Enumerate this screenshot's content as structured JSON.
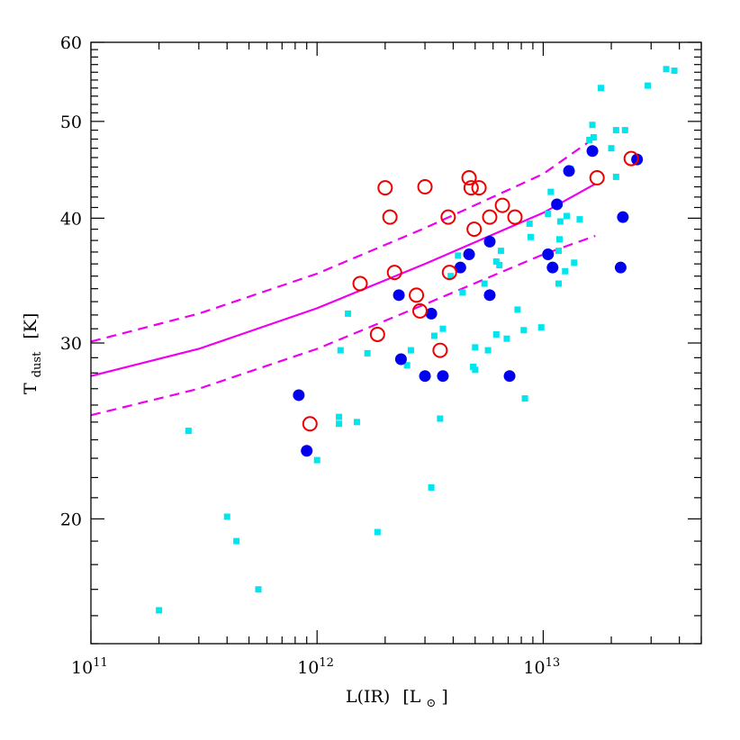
{
  "chart_data": {
    "type": "scatter",
    "xlabel": {
      "main": "L(IR)",
      "bracket_open": "[L",
      "sub": "⊙",
      "bracket_close": "]"
    },
    "ylabel": {
      "main": "T",
      "sub": "dust",
      "units": "[K]"
    },
    "x_scale": "log",
    "y_scale": "log",
    "xlim": [
      100000000000.0,
      50000000000000.0
    ],
    "ylim": [
      15,
      60
    ],
    "x_ticks": [
      {
        "value": 100000000000.0,
        "base": "10",
        "exp": "11"
      },
      {
        "value": 1000000000000.0,
        "base": "10",
        "exp": "12"
      },
      {
        "value": 10000000000000.0,
        "base": "10",
        "exp": "13"
      }
    ],
    "y_ticks": [
      {
        "value": 20,
        "label": "20"
      },
      {
        "value": 30,
        "label": "30"
      },
      {
        "value": 40,
        "label": "40"
      },
      {
        "value": 50,
        "label": "50"
      },
      {
        "value": 60,
        "label": "60"
      }
    ],
    "grid": false,
    "colors": {
      "cyan_squares": "#00e5ee",
      "blue_filled": "#0000ee",
      "red_open": "#ee0000",
      "fit": "#ee00ee"
    },
    "series": [
      {
        "marker": "filled-square",
        "color": "#00e5ee",
        "points": [
          [
            200000000000.0,
            16.2
          ],
          [
            270000000000.0,
            24.5
          ],
          [
            400000000000.0,
            20.1
          ],
          [
            440000000000.0,
            19.0
          ],
          [
            550000000000.0,
            17.0
          ],
          [
            1000000000000.0,
            22.9
          ],
          [
            1250000000000.0,
            25.3
          ],
          [
            1270000000000.0,
            29.5
          ],
          [
            1250000000000.0,
            24.9
          ],
          [
            1370000000000.0,
            32.1
          ],
          [
            1500000000000.0,
            25.0
          ],
          [
            1670000000000.0,
            29.3
          ],
          [
            1850000000000.0,
            19.4
          ],
          [
            2500000000000.0,
            28.5
          ],
          [
            2600000000000.0,
            29.5
          ],
          [
            3200000000000.0,
            21.5
          ],
          [
            3300000000000.0,
            30.5
          ],
          [
            3500000000000.0,
            25.2
          ],
          [
            3600000000000.0,
            31.0
          ],
          [
            3900000000000.0,
            35.0
          ],
          [
            4200000000000.0,
            36.7
          ],
          [
            4400000000000.0,
            33.7
          ],
          [
            4900000000000.0,
            28.4
          ],
          [
            5000000000000.0,
            29.7
          ],
          [
            5000000000000.0,
            28.2
          ],
          [
            5500000000000.0,
            34.4
          ],
          [
            5700000000000.0,
            29.5
          ],
          [
            6200000000000.0,
            36.2
          ],
          [
            6400000000000.0,
            35.9
          ],
          [
            6500000000000.0,
            37.1
          ],
          [
            6200000000000.0,
            30.6
          ],
          [
            6900000000000.0,
            30.3
          ],
          [
            7700000000000.0,
            32.4
          ],
          [
            8200000000000.0,
            30.9
          ],
          [
            8300000000000.0,
            26.4
          ],
          [
            8800000000000.0,
            38.3
          ],
          [
            8700000000000.0,
            39.5
          ],
          [
            9800000000000.0,
            31.1
          ],
          [
            10500000000000.0,
            40.4
          ],
          [
            10800000000000.0,
            42.5
          ],
          [
            11700000000000.0,
            34.4
          ],
          [
            11700000000000.0,
            37.1
          ],
          [
            11800000000000.0,
            38.1
          ],
          [
            11900000000000.0,
            39.7
          ],
          [
            12500000000000.0,
            35.4
          ],
          [
            12700000000000.0,
            40.2
          ],
          [
            13700000000000.0,
            36.1
          ],
          [
            14500000000000.0,
            39.9
          ],
          [
            16000000000000.0,
            47.9
          ],
          [
            16500000000000.0,
            49.6
          ],
          [
            16700000000000.0,
            48.2
          ],
          [
            18000000000000.0,
            54.0
          ],
          [
            20000000000000.0,
            47.0
          ],
          [
            21000000000000.0,
            44.0
          ],
          [
            21000000000000.0,
            49.0
          ],
          [
            23000000000000.0,
            49.0
          ],
          [
            29000000000000.0,
            54.3
          ],
          [
            35000000000000.0,
            56.4
          ],
          [
            38000000000000.0,
            56.2
          ],
          [
            13200000000000.0,
            44.8
          ]
        ]
      },
      {
        "marker": "filled-circle",
        "color": "#0000ee",
        "points": [
          [
            830000000000.0,
            26.6
          ],
          [
            900000000000.0,
            23.4
          ],
          [
            2300000000000.0,
            33.5
          ],
          [
            2350000000000.0,
            28.9
          ],
          [
            3000000000000.0,
            27.8
          ],
          [
            3200000000000.0,
            32.1
          ],
          [
            3600000000000.0,
            27.8
          ],
          [
            4300000000000.0,
            35.7
          ],
          [
            4700000000000.0,
            36.8
          ],
          [
            5800000000000.0,
            33.5
          ],
          [
            5800000000000.0,
            37.9
          ],
          [
            7100000000000.0,
            27.8
          ],
          [
            10500000000000.0,
            36.8
          ],
          [
            11000000000000.0,
            35.7
          ],
          [
            11500000000000.0,
            41.3
          ],
          [
            13000000000000.0,
            44.6
          ],
          [
            16500000000000.0,
            46.7
          ],
          [
            22000000000000.0,
            35.7
          ],
          [
            22500000000000.0,
            40.1
          ],
          [
            26000000000000.0,
            45.8
          ]
        ]
      },
      {
        "marker": "open-circle",
        "color": "#ee0000",
        "points": [
          [
            930000000000.0,
            24.9
          ],
          [
            1550000000000.0,
            34.4
          ],
          [
            1850000000000.0,
            30.6
          ],
          [
            2000000000000.0,
            42.9
          ],
          [
            2100000000000.0,
            40.1
          ],
          [
            2200000000000.0,
            35.3
          ],
          [
            2750000000000.0,
            33.5
          ],
          [
            2850000000000.0,
            32.3
          ],
          [
            3000000000000.0,
            43.0
          ],
          [
            3500000000000.0,
            29.5
          ],
          [
            3800000000000.0,
            40.1
          ],
          [
            3850000000000.0,
            35.3
          ],
          [
            4700000000000.0,
            43.9
          ],
          [
            4800000000000.0,
            42.9
          ],
          [
            4950000000000.0,
            39.0
          ],
          [
            5200000000000.0,
            42.9
          ],
          [
            5800000000000.0,
            40.1
          ],
          [
            6600000000000.0,
            41.2
          ],
          [
            7500000000000.0,
            40.1
          ],
          [
            17300000000000.0,
            43.9
          ],
          [
            24500000000000.0,
            45.9
          ]
        ]
      },
      {
        "marker": "solid-line",
        "color": "#ee00ee",
        "points": [
          [
            100000000000.0,
            27.8
          ],
          [
            300000000000.0,
            29.6
          ],
          [
            1000000000000.0,
            32.5
          ],
          [
            3000000000000.0,
            36.0
          ],
          [
            10000000000000.0,
            40.5
          ],
          [
            17000000000000.0,
            43.3
          ]
        ]
      },
      {
        "marker": "dashed-line",
        "color": "#ee00ee",
        "points": [
          [
            100000000000.0,
            30.1
          ],
          [
            300000000000.0,
            32.1
          ],
          [
            1000000000000.0,
            35.2
          ],
          [
            3000000000000.0,
            39.1
          ],
          [
            10000000000000.0,
            44.3
          ],
          [
            17000000000000.0,
            48.2
          ]
        ]
      },
      {
        "marker": "dashed-line",
        "color": "#ee00ee",
        "points": [
          [
            100000000000.0,
            25.4
          ],
          [
            300000000000.0,
            27.0
          ],
          [
            1000000000000.0,
            29.6
          ],
          [
            3000000000000.0,
            32.8
          ],
          [
            10000000000000.0,
            36.8
          ],
          [
            17000000000000.0,
            38.4
          ]
        ]
      }
    ]
  }
}
